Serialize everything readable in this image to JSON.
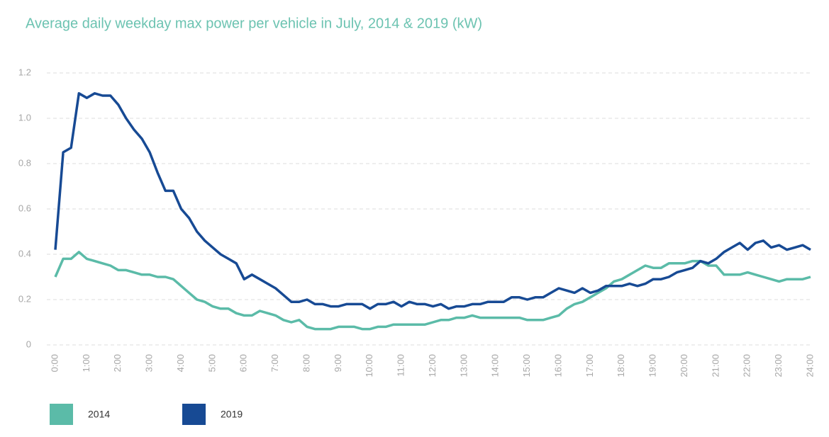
{
  "chart_data": {
    "type": "line",
    "title": "Average daily weekday max power per vehicle in July, 2014 & 2019 (kW)",
    "categories": [
      "0:00",
      null,
      null,
      null,
      "1:00",
      null,
      null,
      null,
      "2:00",
      null,
      null,
      null,
      "3:00",
      null,
      null,
      null,
      "4:00",
      null,
      null,
      null,
      "5:00",
      null,
      null,
      null,
      "6:00",
      null,
      null,
      null,
      "7:00",
      null,
      null,
      null,
      "8:00",
      null,
      null,
      null,
      "9:00",
      null,
      null,
      null,
      "10:00",
      null,
      null,
      null,
      "11:00",
      null,
      null,
      null,
      "12:00",
      null,
      null,
      null,
      "13:00",
      null,
      null,
      null,
      "14:00",
      null,
      null,
      null,
      "15:00",
      null,
      null,
      null,
      "16:00",
      null,
      null,
      null,
      "17:00",
      null,
      null,
      null,
      "18:00",
      null,
      null,
      null,
      "19:00",
      null,
      null,
      null,
      "20:00",
      null,
      null,
      null,
      "21:00",
      null,
      null,
      null,
      "22:00",
      null,
      null,
      null,
      "23:00",
      null,
      null,
      null,
      "24:00"
    ],
    "series": [
      {
        "name": "2014",
        "color": "#5bbba8",
        "values": [
          0.3,
          0.38,
          0.38,
          0.41,
          0.38,
          0.37,
          0.36,
          0.35,
          0.33,
          0.33,
          0.32,
          0.31,
          0.31,
          0.3,
          0.3,
          0.29,
          0.26,
          0.23,
          0.2,
          0.19,
          0.17,
          0.16,
          0.16,
          0.14,
          0.13,
          0.13,
          0.15,
          0.14,
          0.13,
          0.11,
          0.1,
          0.11,
          0.08,
          0.07,
          0.07,
          0.07,
          0.08,
          0.08,
          0.08,
          0.07,
          0.07,
          0.08,
          0.08,
          0.09,
          0.09,
          0.09,
          0.09,
          0.09,
          0.1,
          0.11,
          0.11,
          0.12,
          0.12,
          0.13,
          0.12,
          0.12,
          0.12,
          0.12,
          0.12,
          0.12,
          0.11,
          0.11,
          0.11,
          0.12,
          0.13,
          0.16,
          0.18,
          0.19,
          0.21,
          0.23,
          0.25,
          0.28,
          0.29,
          0.31,
          0.33,
          0.35,
          0.34,
          0.34,
          0.36,
          0.36,
          0.36,
          0.37,
          0.37,
          0.35,
          0.35,
          0.31,
          0.31,
          0.31,
          0.32,
          0.31,
          0.3,
          0.29,
          0.28,
          0.29,
          0.29,
          0.29,
          0.3
        ]
      },
      {
        "name": "2019",
        "color": "#174a94",
        "values": [
          0.42,
          0.85,
          0.87,
          1.11,
          1.09,
          1.11,
          1.1,
          1.1,
          1.06,
          1.0,
          0.95,
          0.91,
          0.85,
          0.76,
          0.68,
          0.68,
          0.6,
          0.56,
          0.5,
          0.46,
          0.43,
          0.4,
          0.38,
          0.36,
          0.29,
          0.31,
          0.29,
          0.27,
          0.25,
          0.22,
          0.19,
          0.19,
          0.2,
          0.18,
          0.18,
          0.17,
          0.17,
          0.18,
          0.18,
          0.18,
          0.16,
          0.18,
          0.18,
          0.19,
          0.17,
          0.19,
          0.18,
          0.18,
          0.17,
          0.18,
          0.16,
          0.17,
          0.17,
          0.18,
          0.18,
          0.19,
          0.19,
          0.19,
          0.21,
          0.21,
          0.2,
          0.21,
          0.21,
          0.23,
          0.25,
          0.24,
          0.23,
          0.25,
          0.23,
          0.24,
          0.26,
          0.26,
          0.26,
          0.27,
          0.26,
          0.27,
          0.29,
          0.29,
          0.3,
          0.32,
          0.33,
          0.34,
          0.37,
          0.36,
          0.38,
          0.41,
          0.43,
          0.45,
          0.42,
          0.45,
          0.46,
          0.43,
          0.44,
          0.42,
          0.43,
          0.44,
          0.42
        ]
      }
    ],
    "ylim": [
      0,
      1.2
    ],
    "yticks": [
      0,
      0.2,
      0.4,
      0.6,
      0.8,
      {
        "value": 1,
        "label": "1.0"
      },
      1.2
    ],
    "grid": true
  }
}
